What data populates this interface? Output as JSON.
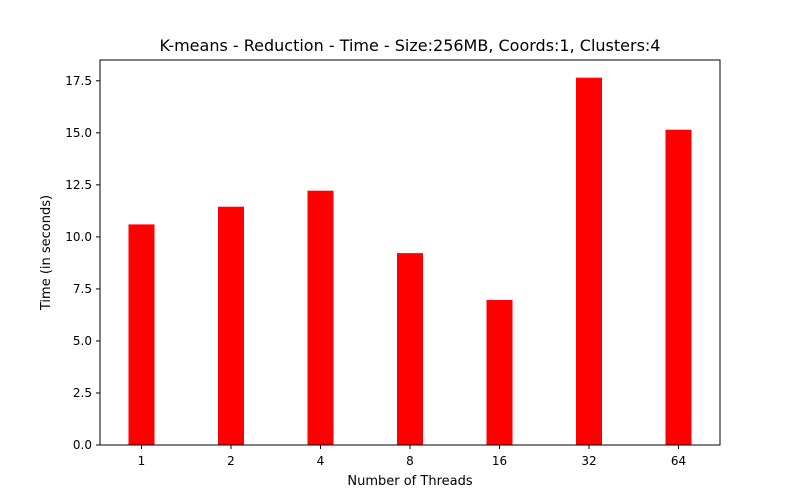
{
  "chart_data": {
    "type": "bar",
    "title": "K-means - Reduction - Time - Size:256MB, Coords:1, Clusters:4",
    "xlabel": "Number of Threads",
    "ylabel": "Time (in seconds)",
    "categories": [
      "1",
      "2",
      "4",
      "8",
      "16",
      "32",
      "64"
    ],
    "values": [
      10.6,
      11.45,
      12.22,
      9.22,
      6.97,
      17.65,
      15.15
    ],
    "ylim": [
      0,
      18.5
    ],
    "yticks": [
      0.0,
      2.5,
      5.0,
      7.5,
      10.0,
      12.5,
      15.0,
      17.5
    ],
    "ytick_labels": [
      "0.0",
      "2.5",
      "5.0",
      "7.5",
      "10.0",
      "12.5",
      "15.0",
      "17.5"
    ],
    "bar_color": "#ff0000",
    "grid": false,
    "legend": "none"
  }
}
